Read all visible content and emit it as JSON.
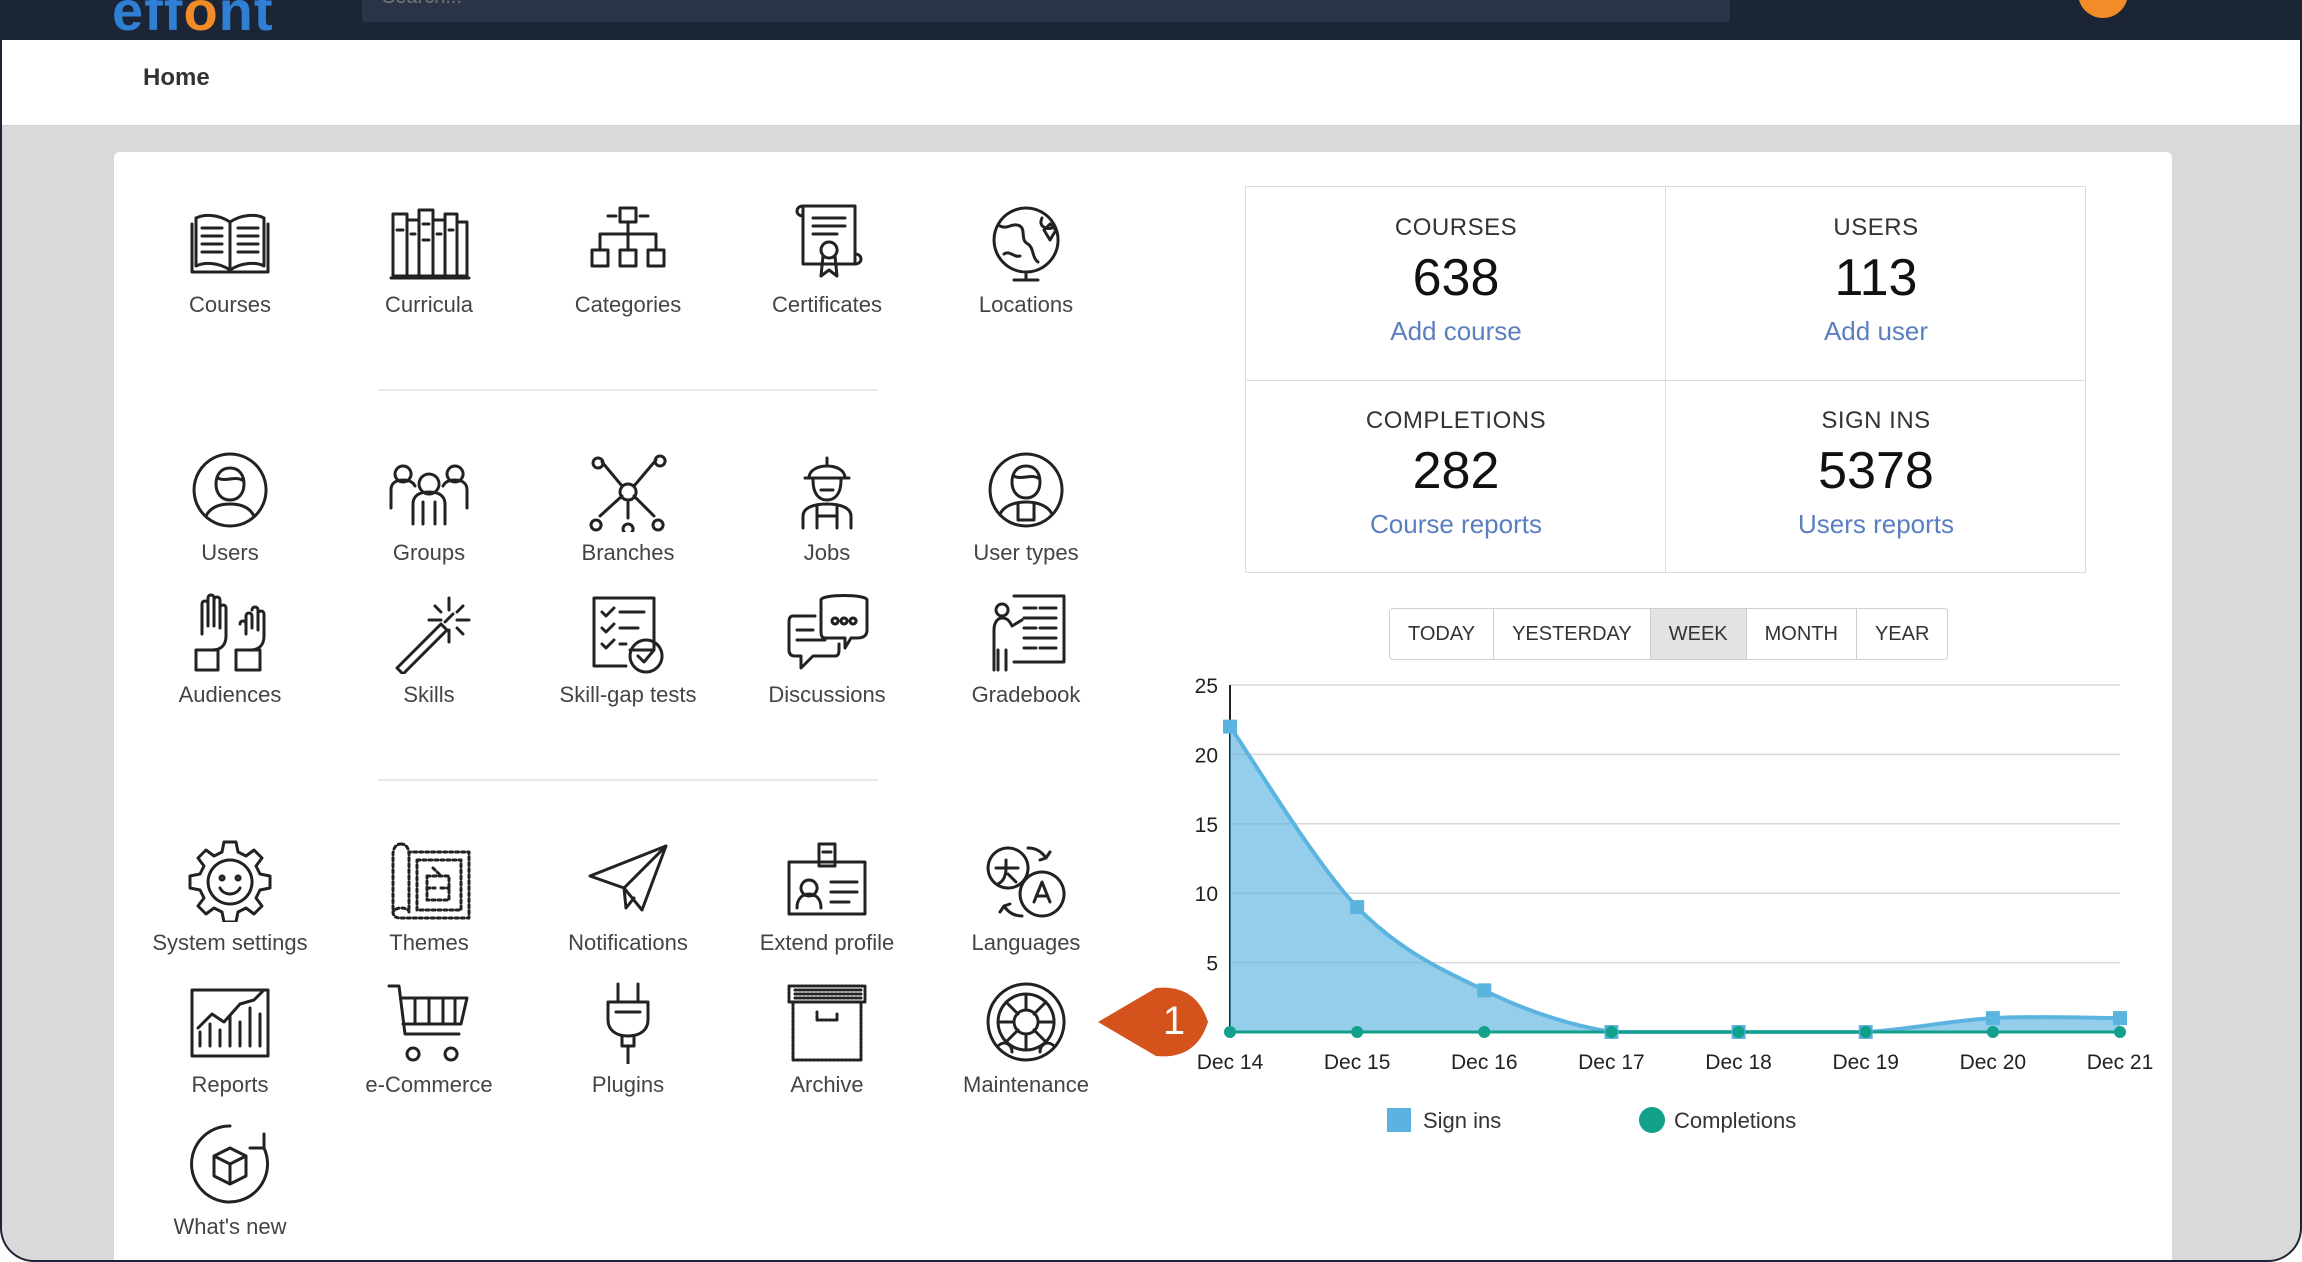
{
  "header": {
    "logo_prefix": "eff",
    "logo_o": "o",
    "logo_suffix": "nt",
    "search_placeholder": "Search..."
  },
  "breadcrumb": {
    "title": "Home"
  },
  "tiles": [
    {
      "label": "Courses",
      "icon": "open-book-icon"
    },
    {
      "label": "Curricula",
      "icon": "bookshelf-icon"
    },
    {
      "label": "Categories",
      "icon": "hierarchy-boxes-icon"
    },
    {
      "label": "Certificates",
      "icon": "certificate-scroll-icon"
    },
    {
      "label": "Locations",
      "icon": "globe-pin-icon"
    },
    {
      "label": "Users",
      "icon": "user-avatar-icon"
    },
    {
      "label": "Groups",
      "icon": "group-people-icon"
    },
    {
      "label": "Branches",
      "icon": "network-nodes-icon"
    },
    {
      "label": "Jobs",
      "icon": "worker-helmet-icon"
    },
    {
      "label": "User types",
      "icon": "user-badge-icon"
    },
    {
      "label": "Audiences",
      "icon": "raised-hands-icon"
    },
    {
      "label": "Skills",
      "icon": "magic-wand-icon"
    },
    {
      "label": "Skill-gap tests",
      "icon": "checklist-icon"
    },
    {
      "label": "Discussions",
      "icon": "chat-bubbles-icon"
    },
    {
      "label": "Gradebook",
      "icon": "presenter-board-icon"
    },
    {
      "label": "System settings",
      "icon": "gear-smile-icon"
    },
    {
      "label": "Themes",
      "icon": "blueprint-icon"
    },
    {
      "label": "Notifications",
      "icon": "paper-plane-icon"
    },
    {
      "label": "Extend profile",
      "icon": "id-card-icon"
    },
    {
      "label": "Languages",
      "icon": "translate-icon"
    },
    {
      "label": "Reports",
      "icon": "report-chart-icon"
    },
    {
      "label": "e-Commerce",
      "icon": "shopping-cart-icon"
    },
    {
      "label": "Plugins",
      "icon": "power-plug-icon"
    },
    {
      "label": "Archive",
      "icon": "archive-box-icon"
    },
    {
      "label": "Maintenance",
      "icon": "maintenance-wheel-icon"
    },
    {
      "label": "What's new",
      "icon": "new-box-icon"
    }
  ],
  "stats": [
    {
      "label": "COURSES",
      "value": "638",
      "link": "Add course"
    },
    {
      "label": "USERS",
      "value": "113",
      "link": "Add user"
    },
    {
      "label": "COMPLETIONS",
      "value": "282",
      "link": "Course reports"
    },
    {
      "label": "SIGN INS",
      "value": "5378",
      "link": "Users reports"
    }
  ],
  "periods": [
    {
      "label": "TODAY",
      "active": false
    },
    {
      "label": "YESTERDAY",
      "active": false
    },
    {
      "label": "WEEK",
      "active": true
    },
    {
      "label": "MONTH",
      "active": false
    },
    {
      "label": "YEAR",
      "active": false
    }
  ],
  "marker": {
    "number": "1",
    "color": "#d4531c"
  },
  "chart_data": {
    "type": "area",
    "categories": [
      "Dec 14",
      "Dec 15",
      "Dec 16",
      "Dec 17",
      "Dec 18",
      "Dec 19",
      "Dec 20",
      "Dec 21"
    ],
    "series": [
      {
        "name": "Sign ins",
        "values": [
          22,
          9,
          3,
          0,
          0,
          0,
          1,
          1
        ],
        "color": "#5bb4e0"
      },
      {
        "name": "Completions",
        "values": [
          0,
          0,
          0,
          0,
          0,
          0,
          0,
          0
        ],
        "color": "#13a08a"
      }
    ],
    "ylim": [
      0,
      25
    ],
    "yticks": [
      5,
      10,
      15,
      20,
      25
    ],
    "grid": true,
    "legend": "bottom"
  }
}
